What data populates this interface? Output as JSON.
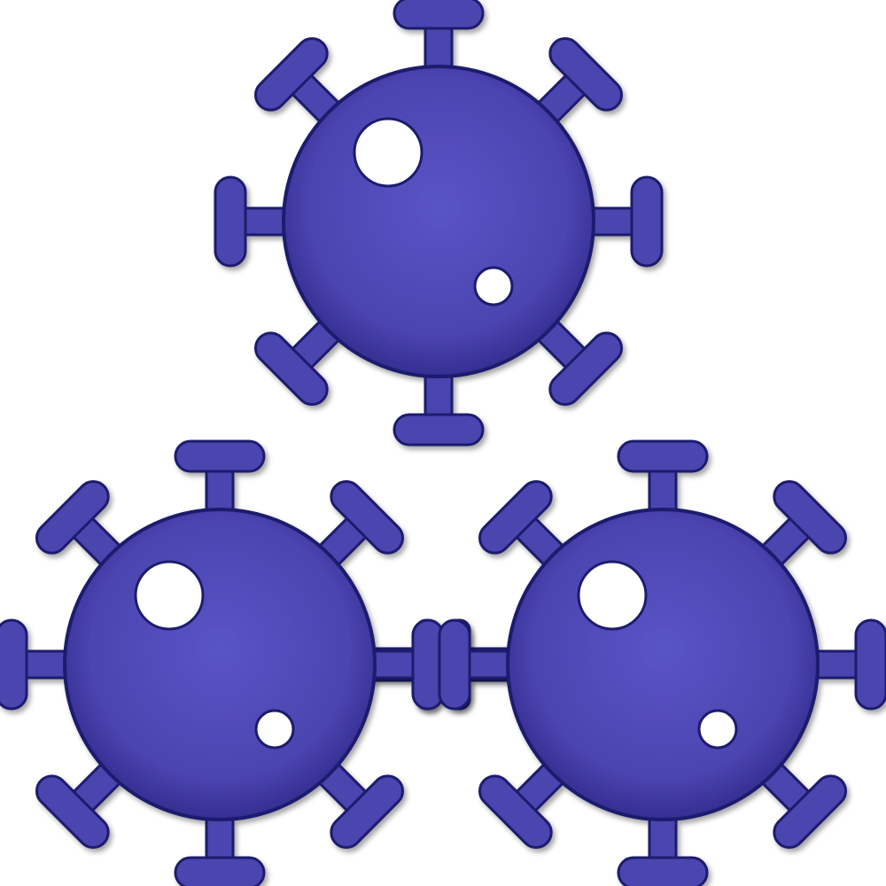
{
  "image": {
    "subject": "virus-cluster-icon",
    "background_color": "#ffffff",
    "fill_color": "#4b44b0",
    "fill_highlight_color": "#5a54c6",
    "edge_color": "#1f1a6e",
    "viruses": [
      {
        "id": "virus-top",
        "spikes": 8
      },
      {
        "id": "virus-bottom-left",
        "spikes": 8
      },
      {
        "id": "virus-bottom-right",
        "spikes": 8
      }
    ]
  }
}
